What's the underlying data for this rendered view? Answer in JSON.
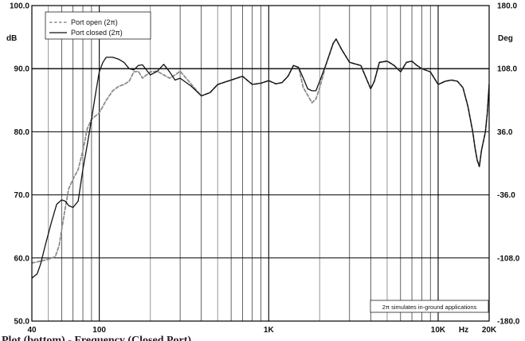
{
  "chart_data": {
    "type": "line",
    "title": "Plot (bottom) - Frequency (Closed Port)",
    "xlabel": "Hz",
    "ylabel": "dB",
    "y2label": "Deg",
    "xscale": "log",
    "xlim": [
      40,
      20000
    ],
    "ylim": [
      50,
      100
    ],
    "y2lim": [
      -180,
      180
    ],
    "grid": true,
    "legend_position": "top-left",
    "x_ticks": [
      {
        "v": 40,
        "label": "40"
      },
      {
        "v": 100,
        "label": "100"
      },
      {
        "v": 1000,
        "label": "1K"
      },
      {
        "v": 10000,
        "label": "10K"
      },
      {
        "v": 20000,
        "label": "20K"
      }
    ],
    "y_ticks": [
      {
        "v": 50,
        "label": "50.0"
      },
      {
        "v": 60,
        "label": "60.0"
      },
      {
        "v": 70,
        "label": "70.0"
      },
      {
        "v": 80,
        "label": "80.0"
      },
      {
        "v": 90,
        "label": "90.0"
      },
      {
        "v": 100,
        "label": "100.0"
      }
    ],
    "y2_ticks": [
      {
        "v": 180,
        "label": "180.0"
      },
      {
        "v": 108,
        "label": "108.0"
      },
      {
        "v": 36,
        "label": "36.0"
      },
      {
        "v": -36,
        "label": "-36.0"
      },
      {
        "v": -108,
        "label": "-108.0"
      },
      {
        "v": -180,
        "label": "-180.0"
      }
    ],
    "annotation": "2π simulates in-ground applications",
    "series": [
      {
        "name": "Port open (2π)",
        "style": "dashed",
        "color": "#8c8c8c",
        "points": [
          [
            40,
            59.2
          ],
          [
            45,
            59.5
          ],
          [
            50,
            59.8
          ],
          [
            55,
            60.2
          ],
          [
            58,
            62
          ],
          [
            60,
            64.5
          ],
          [
            63,
            68
          ],
          [
            66,
            71
          ],
          [
            70,
            72.5
          ],
          [
            75,
            74
          ],
          [
            80,
            77
          ],
          [
            85,
            80.5
          ],
          [
            90,
            82
          ],
          [
            100,
            83
          ],
          [
            110,
            85
          ],
          [
            120,
            86.5
          ],
          [
            130,
            87.2
          ],
          [
            140,
            87.5
          ],
          [
            150,
            88
          ],
          [
            160,
            89.5
          ],
          [
            170,
            89.6
          ],
          [
            180,
            88.5
          ],
          [
            200,
            89.5
          ],
          [
            220,
            89.6
          ],
          [
            240,
            89
          ],
          [
            260,
            88.5
          ],
          [
            280,
            89
          ],
          [
            300,
            89.6
          ],
          [
            350,
            87.5
          ],
          [
            400,
            85.7
          ],
          [
            450,
            86.2
          ],
          [
            500,
            87.5
          ],
          [
            600,
            88.2
          ],
          [
            700,
            88.8
          ],
          [
            800,
            87.5
          ],
          [
            900,
            87.7
          ],
          [
            1000,
            88.1
          ],
          [
            1100,
            87.6
          ],
          [
            1200,
            87.8
          ],
          [
            1300,
            88.8
          ],
          [
            1400,
            90.5
          ],
          [
            1500,
            90.2
          ],
          [
            1600,
            87
          ],
          [
            1700,
            85.8
          ],
          [
            1800,
            84.6
          ],
          [
            1900,
            85.2
          ],
          [
            2000,
            87
          ],
          [
            2200,
            91
          ],
          [
            2400,
            94
          ],
          [
            2500,
            94.7
          ],
          [
            2700,
            93
          ],
          [
            3000,
            91
          ],
          [
            3500,
            90.5
          ],
          [
            4000,
            86.8
          ],
          [
            4200,
            88
          ],
          [
            4500,
            91
          ],
          [
            5000,
            91.2
          ],
          [
            5500,
            90.5
          ],
          [
            6000,
            89.5
          ],
          [
            6500,
            91
          ],
          [
            7000,
            91.2
          ],
          [
            7500,
            90.5
          ],
          [
            8000,
            90
          ],
          [
            9000,
            89.5
          ],
          [
            10000,
            87.5
          ],
          [
            11000,
            88
          ],
          [
            12000,
            88.2
          ],
          [
            13000,
            88
          ],
          [
            14000,
            87
          ],
          [
            15000,
            84
          ],
          [
            16000,
            80
          ],
          [
            16500,
            77.5
          ],
          [
            17000,
            75.5
          ],
          [
            17500,
            74.5
          ],
          [
            18000,
            77
          ],
          [
            19000,
            80
          ],
          [
            19500,
            83
          ],
          [
            20000,
            87.5
          ],
          [
            21000,
            88.5
          ],
          [
            22000,
            90
          ]
        ]
      },
      {
        "name": "Port closed (2π)",
        "style": "solid",
        "color": "#111111",
        "points": [
          [
            40,
            56.8
          ],
          [
            43,
            57.5
          ],
          [
            45,
            59
          ],
          [
            48,
            62
          ],
          [
            52,
            65.5
          ],
          [
            56,
            68.5
          ],
          [
            60,
            69.2
          ],
          [
            63,
            69
          ],
          [
            66,
            68.3
          ],
          [
            70,
            68
          ],
          [
            75,
            69
          ],
          [
            80,
            74
          ],
          [
            85,
            78
          ],
          [
            90,
            82
          ],
          [
            95,
            86
          ],
          [
            100,
            89.5
          ],
          [
            105,
            91
          ],
          [
            110,
            91.8
          ],
          [
            120,
            91.8
          ],
          [
            130,
            91.5
          ],
          [
            140,
            91
          ],
          [
            150,
            90
          ],
          [
            160,
            89.8
          ],
          [
            170,
            90.5
          ],
          [
            180,
            90.6
          ],
          [
            200,
            89
          ],
          [
            220,
            89.6
          ],
          [
            240,
            90.7
          ],
          [
            260,
            89.5
          ],
          [
            280,
            88.2
          ],
          [
            300,
            88.5
          ],
          [
            350,
            87.2
          ],
          [
            400,
            85.7
          ],
          [
            450,
            86.2
          ],
          [
            500,
            87.5
          ],
          [
            600,
            88.2
          ],
          [
            700,
            88.8
          ],
          [
            800,
            87.5
          ],
          [
            900,
            87.7
          ],
          [
            1000,
            88.1
          ],
          [
            1100,
            87.6
          ],
          [
            1200,
            87.8
          ],
          [
            1300,
            88.8
          ],
          [
            1400,
            90.5
          ],
          [
            1500,
            90.2
          ],
          [
            1600,
            88.5
          ],
          [
            1700,
            86.8
          ],
          [
            1800,
            86.5
          ],
          [
            1900,
            86.5
          ],
          [
            2000,
            88
          ],
          [
            2200,
            91
          ],
          [
            2400,
            94
          ],
          [
            2500,
            94.7
          ],
          [
            2700,
            93
          ],
          [
            3000,
            91
          ],
          [
            3500,
            90.5
          ],
          [
            4000,
            86.8
          ],
          [
            4200,
            88
          ],
          [
            4500,
            91
          ],
          [
            5000,
            91.2
          ],
          [
            5500,
            90.5
          ],
          [
            6000,
            89.5
          ],
          [
            6500,
            91
          ],
          [
            7000,
            91.2
          ],
          [
            7500,
            90.5
          ],
          [
            8000,
            90
          ],
          [
            9000,
            89.5
          ],
          [
            10000,
            87.5
          ],
          [
            11000,
            88
          ],
          [
            12000,
            88.2
          ],
          [
            13000,
            88
          ],
          [
            14000,
            87
          ],
          [
            15000,
            84
          ],
          [
            16000,
            80
          ],
          [
            16500,
            77.5
          ],
          [
            17000,
            75.5
          ],
          [
            17500,
            74.5
          ],
          [
            18000,
            77
          ],
          [
            19000,
            80
          ],
          [
            19500,
            83
          ],
          [
            20000,
            87.5
          ],
          [
            21000,
            88.5
          ],
          [
            22000,
            90
          ]
        ]
      }
    ]
  }
}
